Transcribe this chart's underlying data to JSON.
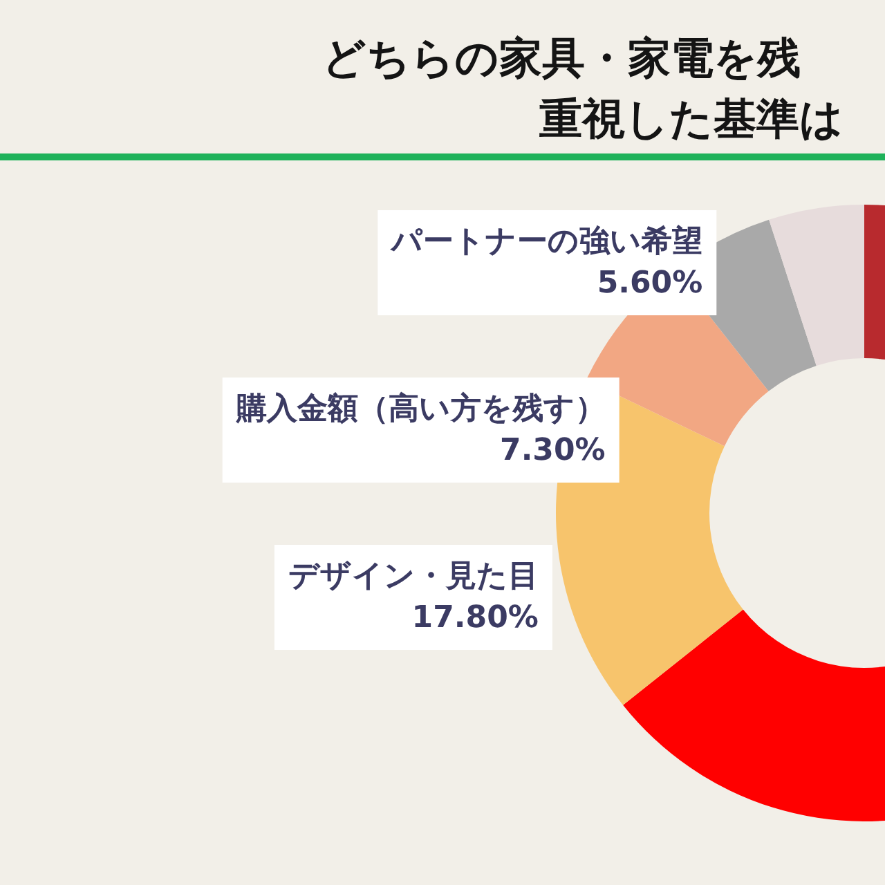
{
  "chart_data": {
    "type": "donut",
    "title": "どちらの家具・家電を残",
    "subtitle": "重視した基準は",
    "categories": [
      null,
      null,
      "デザイン・見た目",
      "購入金額（高い方を残す）",
      "パートナーの強い希望",
      null
    ],
    "values": [
      26.3,
      38,
      17.8,
      7.3,
      5.6,
      5
    ],
    "value_labels": [
      null,
      null,
      "17.80%",
      "7.30%",
      "5.60%",
      null
    ],
    "colors": [
      "#b82a2e",
      "#ff0000",
      "#f7c46c",
      "#f2a783",
      "#a9a9a9",
      "#e7dcdc"
    ],
    "legend": false
  }
}
